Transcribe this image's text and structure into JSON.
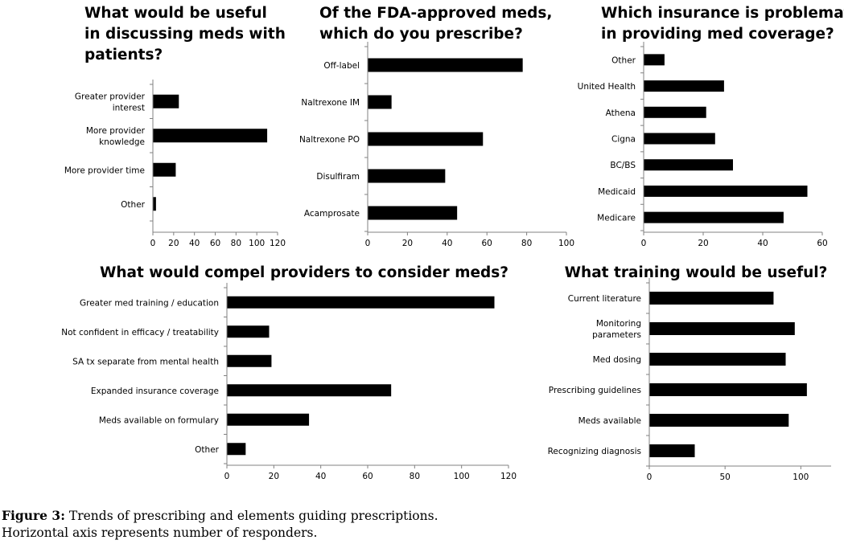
{
  "chart_data": [
    {
      "type": "bar",
      "orientation": "horizontal",
      "title": [
        "What would be useful",
        "in discussing meds with",
        "patients?"
      ],
      "categories": [
        [
          "Greater provider",
          "interest"
        ],
        [
          "More provider",
          "knowledge"
        ],
        [
          "More provider time"
        ],
        [
          "Other"
        ]
      ],
      "values": [
        25,
        110,
        22,
        3
      ],
      "xlim": [
        0,
        120
      ],
      "xticks": [
        0,
        20,
        40,
        60,
        80,
        100,
        120
      ],
      "grid": false
    },
    {
      "type": "bar",
      "orientation": "horizontal",
      "title": [
        "Of the FDA-approved meds,",
        "which do you prescribe?"
      ],
      "categories": [
        [
          "Off-label"
        ],
        [
          "Naltrexone IM"
        ],
        [
          "Naltrexone PO"
        ],
        [
          "Disulfiram"
        ],
        [
          "Acamprosate"
        ]
      ],
      "values": [
        78,
        12,
        58,
        39,
        45
      ],
      "xlim": [
        0,
        100
      ],
      "xticks": [
        0,
        20,
        40,
        60,
        80,
        100
      ],
      "grid": false
    },
    {
      "type": "bar",
      "orientation": "horizontal",
      "title": [
        "Which insurance is problematic",
        "in providing med coverage?"
      ],
      "categories": [
        [
          "Other"
        ],
        [
          "United Health"
        ],
        [
          "Athena"
        ],
        [
          "Cigna"
        ],
        [
          "BC/BS"
        ],
        [
          "Medicaid"
        ],
        [
          "Medicare"
        ]
      ],
      "values": [
        7,
        27,
        21,
        24,
        30,
        55,
        47
      ],
      "xlim": [
        0,
        60
      ],
      "xticks": [
        0,
        20,
        40,
        60
      ],
      "grid": false
    },
    {
      "type": "bar",
      "orientation": "horizontal",
      "title": [
        "What would compel providers to consider meds?"
      ],
      "categories": [
        [
          "Greater med training / education"
        ],
        [
          "Not confident in efficacy / treatability"
        ],
        [
          "SA tx separate from mental health"
        ],
        [
          "Expanded insurance coverage"
        ],
        [
          "Meds available on formulary"
        ],
        [
          "Other"
        ]
      ],
      "values": [
        114,
        18,
        19,
        70,
        35,
        8
      ],
      "xlim": [
        0,
        120
      ],
      "xticks": [
        0,
        20,
        40,
        60,
        80,
        100,
        120
      ],
      "grid": false
    },
    {
      "type": "bar",
      "orientation": "horizontal",
      "title": [
        "What training would be useful?"
      ],
      "categories": [
        [
          "Current literature"
        ],
        [
          "Monitoring",
          "parameters"
        ],
        [
          "Med dosing"
        ],
        [
          "Prescribing guidelines"
        ],
        [
          "Meds available"
        ],
        [
          "Recognizing diagnosis"
        ]
      ],
      "values": [
        82,
        96,
        90,
        104,
        92,
        30
      ],
      "xlim": [
        0,
        120
      ],
      "xticks": [
        0,
        50,
        100
      ],
      "grid": false
    }
  ],
  "caption": {
    "label": "Figure 3:",
    "text": " Trends of prescribing and elements guiding prescriptions.",
    "line2": "Horizontal axis represents number of responders."
  }
}
